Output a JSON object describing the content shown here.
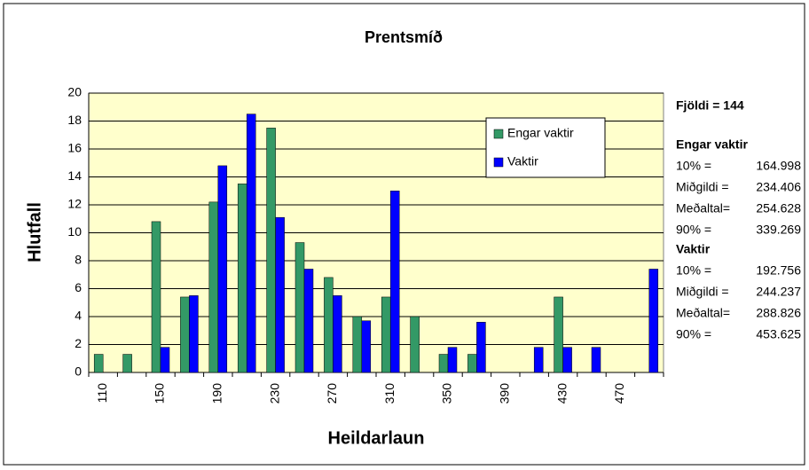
{
  "chart_data": {
    "type": "bar",
    "title": "Prentsmíð",
    "x_label": "Heildarlaun",
    "y_label": "Hlutfall",
    "categories": [
      110,
      null,
      150,
      null,
      190,
      null,
      230,
      null,
      270,
      null,
      310,
      null,
      350,
      null,
      390,
      null,
      430,
      null,
      470,
      null
    ],
    "series": [
      {
        "name": "Engar vaktir",
        "color": "#339966",
        "values": [
          1.3,
          1.3,
          10.8,
          5.4,
          12.2,
          13.5,
          17.5,
          9.3,
          6.8,
          4.0,
          5.4,
          4.0,
          1.3,
          1.3,
          0,
          0,
          5.4,
          0,
          0,
          0
        ]
      },
      {
        "name": "Vaktir",
        "color": "#0000ff",
        "values": [
          0,
          0,
          1.8,
          5.5,
          14.8,
          18.5,
          11.1,
          7.4,
          5.5,
          3.7,
          13.0,
          0,
          1.8,
          3.6,
          0,
          1.8,
          1.8,
          1.8,
          0,
          7.4
        ]
      }
    ],
    "ylim": [
      0,
      20
    ],
    "yticks": [
      0,
      2,
      4,
      6,
      8,
      10,
      12,
      14,
      16,
      18,
      20
    ],
    "grid": true,
    "legend": "upper right",
    "plot_background": "#ffffcc",
    "stats": {
      "count": "Fjöldi = 144",
      "groups": [
        {
          "name": "Engar vaktir",
          "rows": [
            [
              "10% =",
              164.998
            ],
            [
              "Miðgildi =",
              234.406
            ],
            [
              "Meðaltal=",
              254.628
            ],
            [
              "90% =",
              339.269
            ]
          ]
        },
        {
          "name": "Vaktir",
          "rows": [
            [
              "10% =",
              192.756
            ],
            [
              "Miðgildi =",
              244.237
            ],
            [
              "Meðaltal=",
              288.826
            ],
            [
              "90% =",
              453.625
            ]
          ]
        }
      ]
    }
  }
}
